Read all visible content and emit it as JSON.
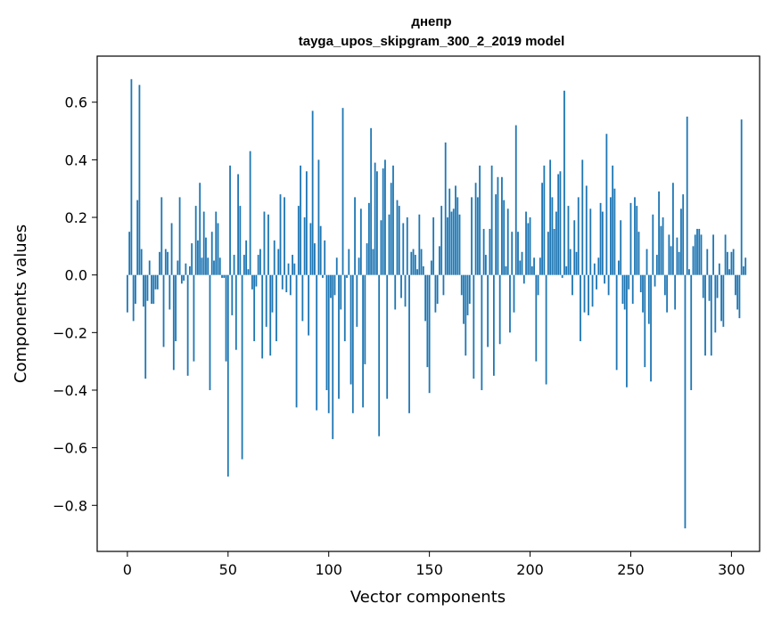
{
  "chart_data": {
    "type": "bar",
    "title_line1": "днепр",
    "title_line2": "tayga_upos_skipgram_300_2_2019 model",
    "xlabel": "Vector components",
    "ylabel": "Components values",
    "xlim": [
      -15,
      314
    ],
    "ylim": [
      -0.96,
      0.76
    ],
    "x_ticks": [
      0,
      50,
      100,
      150,
      200,
      250,
      300
    ],
    "x_tick_labels": [
      "0",
      "50",
      "100",
      "150",
      "200",
      "250",
      "300"
    ],
    "y_ticks": [
      -0.8,
      -0.6,
      -0.4,
      -0.2,
      0.0,
      0.2,
      0.4,
      0.6
    ],
    "y_tick_labels": [
      "−0.8",
      "−0.6",
      "−0.4",
      "−0.2",
      "0.0",
      "0.2",
      "0.4",
      "0.6"
    ],
    "bar_color": "#1f77b4",
    "values": [
      -0.13,
      0.15,
      0.68,
      -0.16,
      -0.1,
      0.26,
      0.66,
      0.09,
      -0.11,
      -0.36,
      -0.09,
      0.05,
      -0.1,
      -0.1,
      -0.05,
      -0.05,
      0.08,
      0.27,
      -0.25,
      0.09,
      0.08,
      -0.12,
      0.18,
      -0.33,
      -0.23,
      0.05,
      0.27,
      -0.03,
      -0.02,
      0.04,
      -0.35,
      0.03,
      0.11,
      -0.3,
      0.24,
      0.12,
      0.32,
      0.06,
      0.22,
      0.13,
      0.06,
      -0.4,
      0.15,
      0.05,
      0.22,
      0.18,
      0.06,
      -0.01,
      -0.01,
      -0.3,
      -0.7,
      0.38,
      -0.14,
      0.07,
      -0.26,
      0.35,
      0.24,
      -0.64,
      0.07,
      0.12,
      0.02,
      0.43,
      -0.05,
      -0.23,
      -0.04,
      0.07,
      0.09,
      -0.29,
      0.22,
      -0.18,
      0.21,
      -0.28,
      -0.13,
      0.12,
      -0.23,
      0.09,
      0.28,
      -0.05,
      0.27,
      -0.06,
      0.04,
      -0.07,
      0.07,
      0.04,
      -0.46,
      0.24,
      0.38,
      -0.16,
      0.2,
      0.36,
      -0.21,
      0.18,
      0.57,
      0.11,
      -0.47,
      0.4,
      0.17,
      -0.01,
      0.12,
      -0.4,
      -0.48,
      -0.08,
      -0.57,
      -0.07,
      0.06,
      -0.43,
      -0.12,
      0.58,
      -0.23,
      -0.01,
      0.09,
      -0.38,
      -0.48,
      0.27,
      -0.18,
      0.06,
      0.23,
      -0.46,
      -0.31,
      0.11,
      0.25,
      0.51,
      0.09,
      0.39,
      0.36,
      -0.56,
      0.19,
      0.37,
      0.4,
      -0.43,
      0.21,
      0.32,
      0.38,
      -0.12,
      0.26,
      0.24,
      -0.08,
      0.18,
      -0.11,
      0.2,
      -0.48,
      0.08,
      0.09,
      0.07,
      0.02,
      0.21,
      0.09,
      0.03,
      -0.16,
      -0.32,
      -0.41,
      0.05,
      0.2,
      -0.13,
      -0.1,
      0.1,
      0.24,
      -0.07,
      0.46,
      0.2,
      0.3,
      0.22,
      0.23,
      0.31,
      0.27,
      0.21,
      -0.07,
      -0.17,
      -0.28,
      -0.14,
      -0.1,
      0.27,
      -0.36,
      0.32,
      0.27,
      0.38,
      -0.4,
      0.16,
      0.07,
      -0.25,
      0.16,
      0.38,
      -0.35,
      0.28,
      0.34,
      -0.24,
      0.34,
      0.26,
      0.03,
      0.23,
      -0.2,
      0.15,
      -0.13,
      0.52,
      0.15,
      0.05,
      0.08,
      -0.03,
      0.22,
      0.18,
      0.2,
      0.03,
      0.06,
      -0.3,
      -0.07,
      0.06,
      0.32,
      0.38,
      -0.38,
      0.15,
      0.4,
      0.27,
      0.16,
      0.22,
      0.35,
      0.36,
      -0.01,
      0.64,
      0.03,
      0.24,
      0.09,
      -0.07,
      0.19,
      0.08,
      0.27,
      -0.23,
      0.4,
      -0.13,
      0.31,
      -0.14,
      0.23,
      -0.11,
      0.04,
      -0.05,
      0.06,
      0.25,
      0.22,
      -0.03,
      0.49,
      -0.07,
      0.27,
      0.38,
      0.3,
      -0.33,
      0.05,
      0.19,
      -0.1,
      -0.12,
      -0.39,
      -0.05,
      0.25,
      -0.1,
      0.27,
      0.24,
      0.15,
      -0.06,
      -0.13,
      -0.32,
      0.09,
      -0.17,
      -0.37,
      0.21,
      -0.04,
      0.07,
      0.29,
      0.17,
      0.2,
      -0.07,
      -0.13,
      0.14,
      0.1,
      0.32,
      -0.12,
      0.13,
      0.08,
      0.23,
      0.28,
      -0.88,
      0.55,
      0.02,
      -0.4,
      0.1,
      0.14,
      0.16,
      0.16,
      0.14,
      -0.08,
      -0.28,
      0.09,
      -0.09,
      -0.28,
      0.14,
      -0.2,
      -0.08,
      0.04,
      -0.16,
      -0.18,
      0.14,
      0.08,
      0.02,
      0.08,
      0.09,
      -0.07,
      -0.12,
      -0.15,
      0.54,
      0.03,
      0.06
    ]
  }
}
